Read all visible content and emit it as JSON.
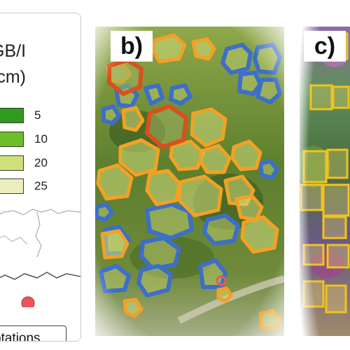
{
  "legend": {
    "title": "GB/I\n(cm)",
    "items": [
      {
        "value": "5",
        "color": "#2f9a1e"
      },
      {
        "value": "10",
        "color": "#6cbf2a"
      },
      {
        "value": "20",
        "color": "#cfe07a"
      },
      {
        "value": "25",
        "color": "#ecefbd"
      }
    ]
  },
  "annotations": {
    "label": "otations",
    "marker_color": "#e9575a"
  },
  "panels": {
    "b": {
      "label": "b)"
    },
    "c": {
      "label": "c)"
    }
  },
  "colors": {
    "blue_outline": "#3d6fc8",
    "orange_outline": "#f3a124",
    "red_outline": "#d9501c",
    "yellow_box": "#f3c21e"
  }
}
